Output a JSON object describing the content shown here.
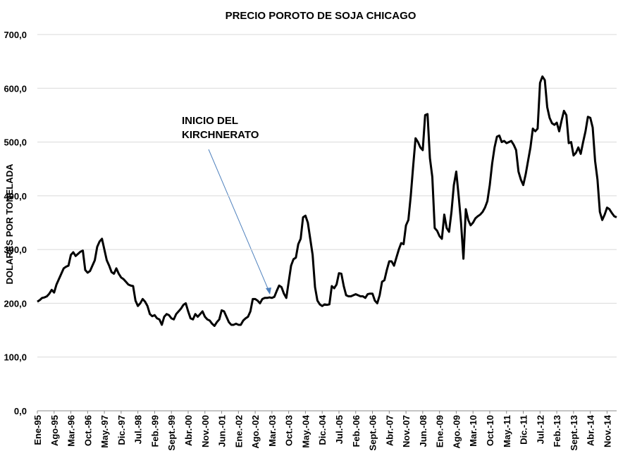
{
  "chart_data": {
    "type": "line",
    "title": "PRECIO POROTO DE SOJA CHICAGO",
    "y_label": "DOLARES POR TONELADA",
    "annotation": "INICIO DEL KIRCHNERATO",
    "categories": [
      "Ene-95",
      null,
      null,
      null,
      null,
      null,
      null,
      "Ago-95",
      null,
      null,
      null,
      null,
      null,
      null,
      "Mar.-96",
      null,
      null,
      null,
      null,
      null,
      null,
      "Oct.-96",
      null,
      null,
      null,
      null,
      null,
      null,
      "May.-97",
      null,
      null,
      null,
      null,
      null,
      null,
      "Dic.-97",
      null,
      null,
      null,
      null,
      null,
      null,
      "Jul.-98",
      null,
      null,
      null,
      null,
      null,
      null,
      "Feb.-99",
      null,
      null,
      null,
      null,
      null,
      null,
      "Sept.-99",
      null,
      null,
      null,
      null,
      null,
      null,
      "Abr.-00",
      null,
      null,
      null,
      null,
      null,
      null,
      "Nov.-00",
      null,
      null,
      null,
      null,
      null,
      null,
      "Jun.-01",
      null,
      null,
      null,
      null,
      null,
      null,
      "Ene.-02",
      null,
      null,
      null,
      null,
      null,
      null,
      "Ago.-02",
      null,
      null,
      null,
      null,
      null,
      null,
      "Mar.-03",
      null,
      null,
      null,
      null,
      null,
      null,
      "Oct.-03",
      null,
      null,
      null,
      null,
      null,
      null,
      "May.-04",
      null,
      null,
      null,
      null,
      null,
      null,
      "Dic.-04",
      null,
      null,
      null,
      null,
      null,
      null,
      "Jul.-05",
      null,
      null,
      null,
      null,
      null,
      null,
      "Feb.-06",
      null,
      null,
      null,
      null,
      null,
      null,
      "Sept.-06",
      null,
      null,
      null,
      null,
      null,
      null,
      "Abr.-07",
      null,
      null,
      null,
      null,
      null,
      null,
      "Nov.-07",
      null,
      null,
      null,
      null,
      null,
      null,
      "Jun.-08",
      null,
      null,
      null,
      null,
      null,
      null,
      "Ene.-09",
      null,
      null,
      null,
      null,
      null,
      null,
      "Ago.-09",
      null,
      null,
      null,
      null,
      null,
      null,
      "Mar.-10",
      null,
      null,
      null,
      null,
      null,
      null,
      "Oct.-10",
      null,
      null,
      null,
      null,
      null,
      null,
      "May.-11",
      null,
      null,
      null,
      null,
      null,
      null,
      "Dic.-11",
      null,
      null,
      null,
      null,
      null,
      null,
      "Jul.-12",
      null,
      null,
      null,
      null,
      null,
      null,
      "Feb.-13",
      null,
      null,
      null,
      null,
      null,
      null,
      "Sept.-13",
      null,
      null,
      null,
      null,
      null,
      null,
      "Abr.-14",
      null,
      null,
      null,
      null,
      null,
      null,
      "Nov.-14",
      null,
      null,
      null,
      null
    ],
    "series": [
      {
        "name": "Precio",
        "color": "#000000",
        "values": [
          203,
          206,
          210,
          211,
          213,
          218,
          225,
          220,
          235,
          245,
          255,
          265,
          268,
          270,
          290,
          295,
          288,
          292,
          296,
          298,
          262,
          257,
          260,
          270,
          280,
          305,
          315,
          320,
          300,
          280,
          270,
          258,
          255,
          265,
          255,
          248,
          245,
          240,
          235,
          233,
          232,
          205,
          195,
          200,
          208,
          203,
          195,
          180,
          176,
          178,
          172,
          170,
          160,
          175,
          180,
          178,
          172,
          170,
          180,
          185,
          190,
          197,
          200,
          185,
          172,
          170,
          180,
          175,
          180,
          185,
          175,
          170,
          168,
          162,
          158,
          165,
          170,
          187,
          185,
          175,
          165,
          160,
          160,
          162,
          160,
          160,
          168,
          172,
          175,
          185,
          208,
          208,
          205,
          200,
          208,
          210,
          210,
          211,
          210,
          212,
          223,
          233,
          230,
          218,
          210,
          240,
          270,
          282,
          285,
          310,
          320,
          360,
          363,
          350,
          320,
          290,
          230,
          205,
          198,
          195,
          198,
          197,
          198,
          232,
          228,
          235,
          256,
          255,
          232,
          215,
          213,
          213,
          215,
          217,
          215,
          213,
          213,
          210,
          217,
          218,
          218,
          205,
          200,
          215,
          240,
          243,
          262,
          278,
          278,
          270,
          285,
          300,
          312,
          310,
          345,
          355,
          400,
          455,
          507,
          500,
          490,
          485,
          550,
          552,
          470,
          435,
          340,
          335,
          325,
          320,
          365,
          340,
          333,
          370,
          420,
          445,
          400,
          350,
          283,
          375,
          355,
          345,
          350,
          358,
          362,
          365,
          370,
          378,
          390,
          420,
          460,
          490,
          510,
          512,
          500,
          502,
          498,
          500,
          502,
          495,
          485,
          445,
          430,
          420,
          440,
          465,
          490,
          525,
          520,
          525,
          610,
          622,
          615,
          565,
          545,
          535,
          532,
          536,
          520,
          540,
          558,
          550,
          498,
          500,
          475,
          480,
          490,
          478,
          500,
          520,
          547,
          545,
          527,
          465,
          430,
          370,
          355,
          365,
          378,
          375,
          368,
          362,
          360
        ]
      }
    ],
    "ylim": [
      0,
      700
    ],
    "yticks": [
      {
        "value": 0,
        "label": "0,0"
      },
      {
        "value": 100,
        "label": "100,0"
      },
      {
        "value": 200,
        "label": "200,0"
      },
      {
        "value": 300,
        "label": "300,0"
      },
      {
        "value": 400,
        "label": "400,0"
      },
      {
        "value": 500,
        "label": "500,0"
      },
      {
        "value": 600,
        "label": "600,0"
      },
      {
        "value": 700,
        "label": "700,0"
      }
    ],
    "grid": true
  }
}
